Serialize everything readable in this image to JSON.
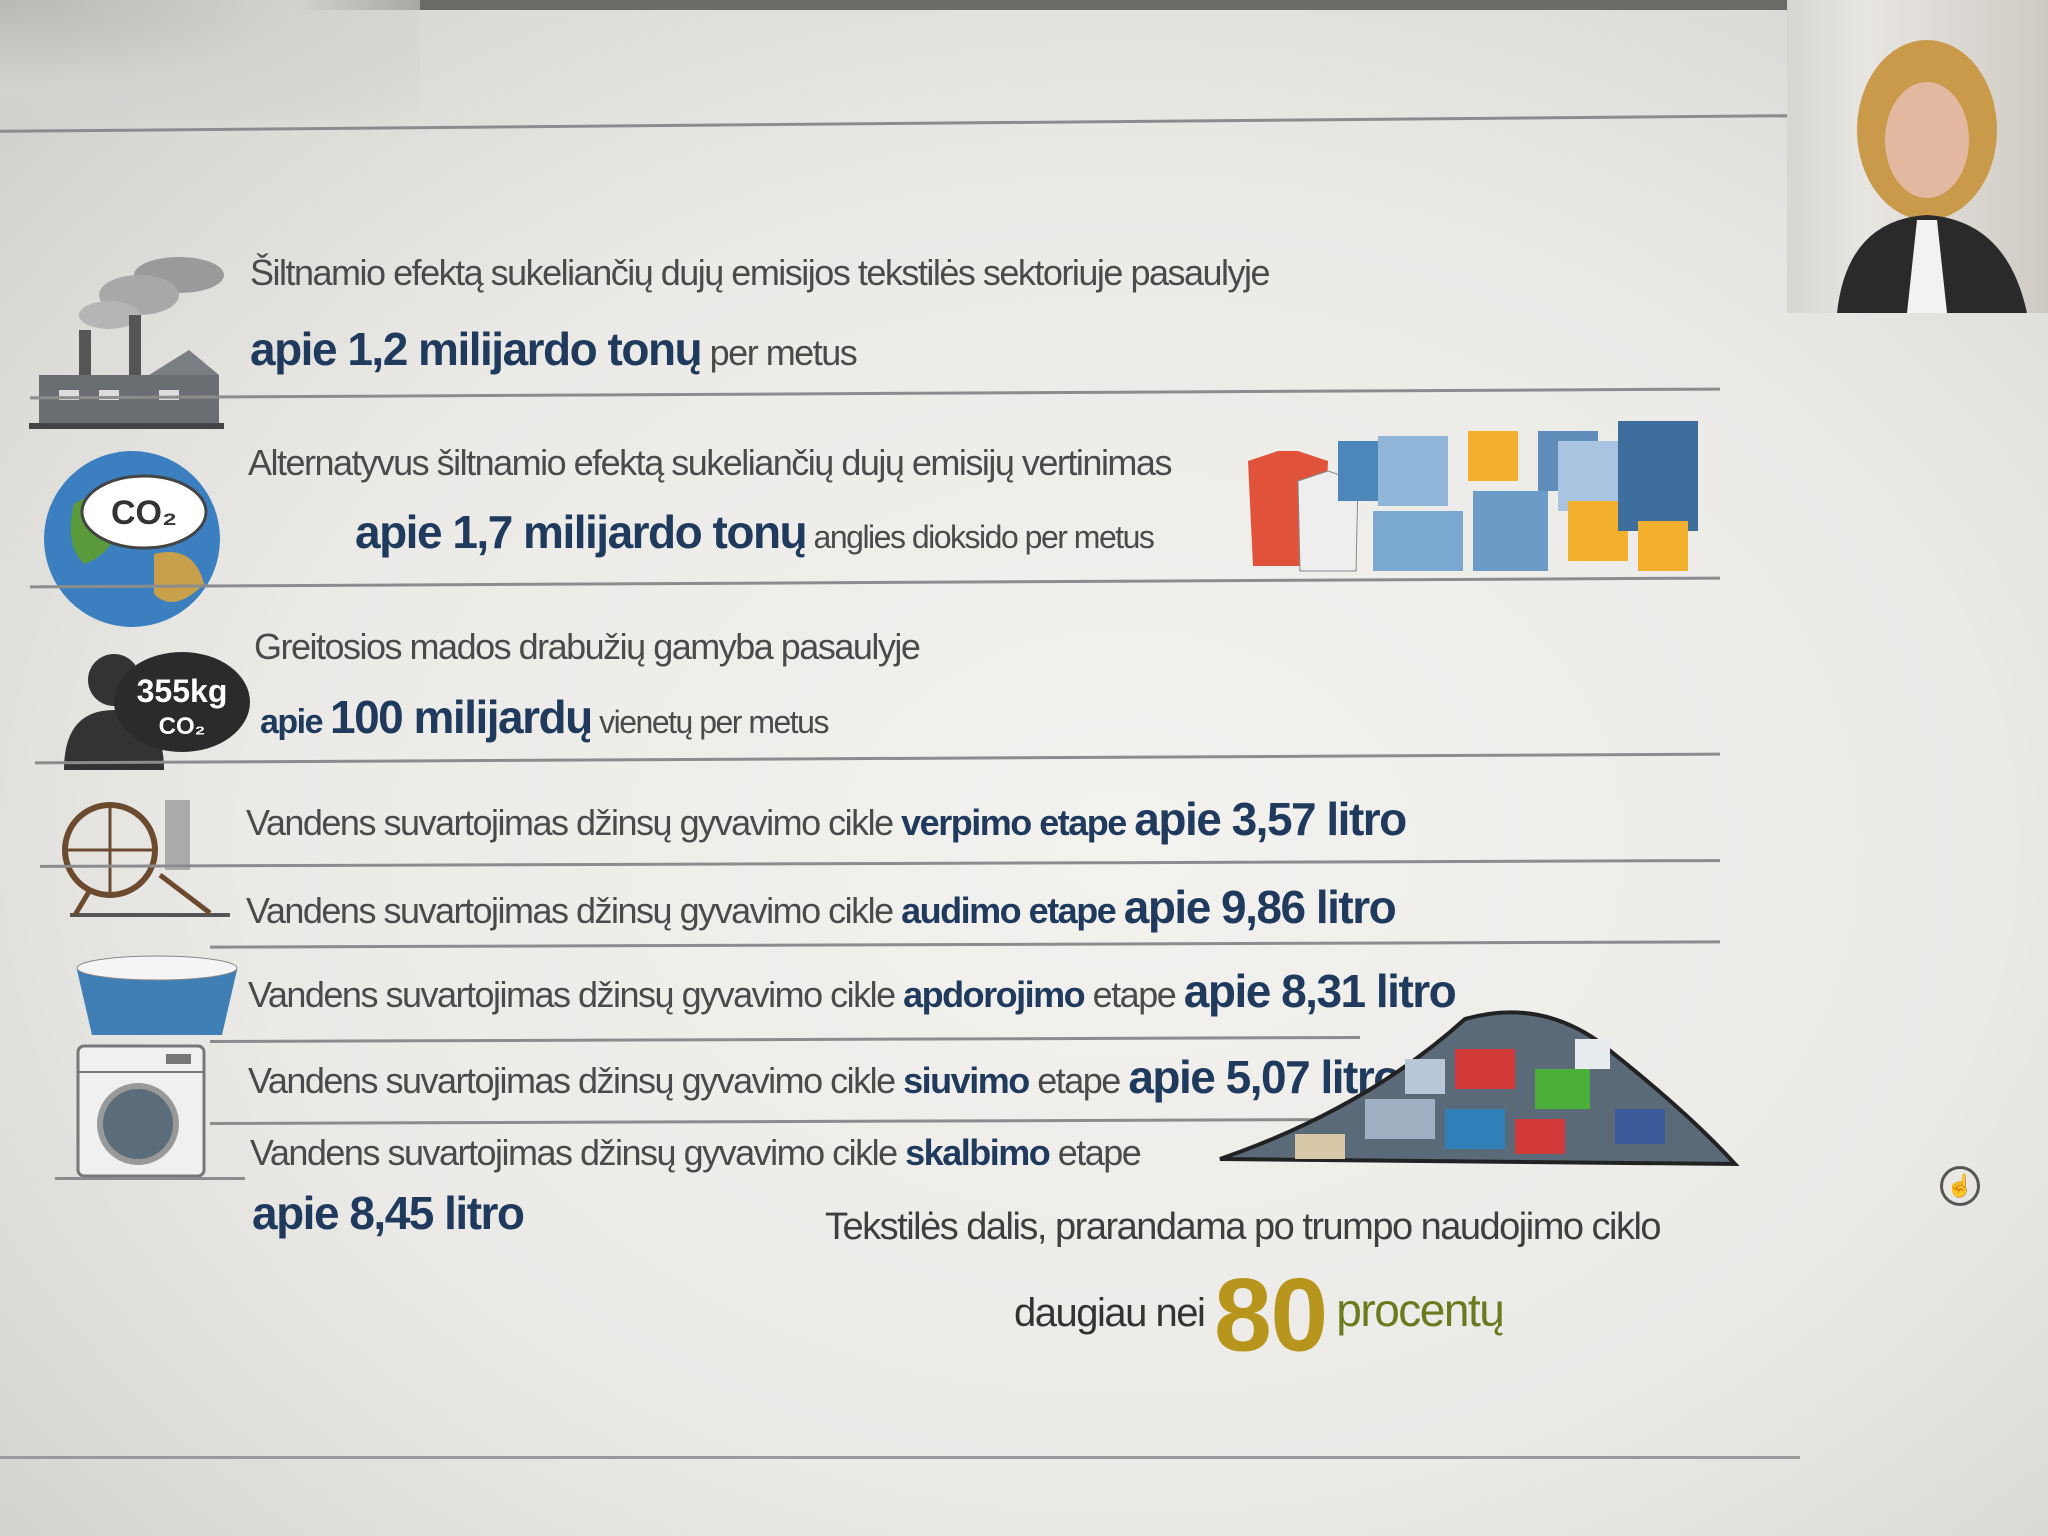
{
  "rows": [
    {
      "line1": "Šiltnamio efektą sukeliančių dujų emisijos tekstilės  sektoriuje pasaulyje",
      "pre": "apie ",
      "value": "1,2 milijardo tonų",
      "post": " per metus",
      "icon": "factory-icon"
    },
    {
      "line1": "Alternatyvus šiltnamio efektą sukeliančių dujų emisijų vertinimas",
      "pre": "apie ",
      "value": "1,7 milijardo tonų",
      "post": " anglies dioksido per metus",
      "icon": "globe-co2-icon",
      "icon_text": "CO₂"
    },
    {
      "line1": "Greitosios mados drabužių gamyba pasaulyje",
      "pre": "apie ",
      "value": "100 milijardų",
      "post": " vienetų per metus",
      "icon": "person-co2-icon",
      "icon_text": "355kg CO₂"
    }
  ],
  "water": [
    {
      "prefix": "Vandens suvartojimas džinsų gyvavimo cikle ",
      "stage": "verpimo",
      "etape": " etape",
      "value": "apie 3,57 litro",
      "icon": "spinning-wheel-icon"
    },
    {
      "prefix": "Vandens suvartojimas džinsų gyvavimo cikle ",
      "stage": "audimo",
      "etape": " etape",
      "value": "apie 9,86 litro"
    },
    {
      "prefix": "Vandens suvartojimas džinsų gyvavimo cikle ",
      "stage": "apdorojimo",
      "etape": " etape",
      "value": "apie 8,31 litro",
      "icon": "wash-basin-icon"
    },
    {
      "prefix": "Vandens suvartojimas džinsų gyvavimo cikle ",
      "stage": "siuvimo",
      "etape": " etape",
      "value": "apie 5,07 litro",
      "icon": "washing-machine-icon"
    },
    {
      "prefix": "Vandens suvartojimas džinsų gyvavimo cikle ",
      "stage": "skalbimo",
      "etape": " etape",
      "value": "apie 8,45 litro"
    }
  ],
  "waste": {
    "line1": "Tekstilės dalis, prarandama po trumpo naudojimo ciklo",
    "pre": "daugiau nei",
    "number": "80",
    "post": "procentų",
    "number_color": "#b8961e",
    "post_color": "#6b7a1e"
  },
  "colors": {
    "accent": "#1f3a5c",
    "text": "#4a4a4a"
  }
}
